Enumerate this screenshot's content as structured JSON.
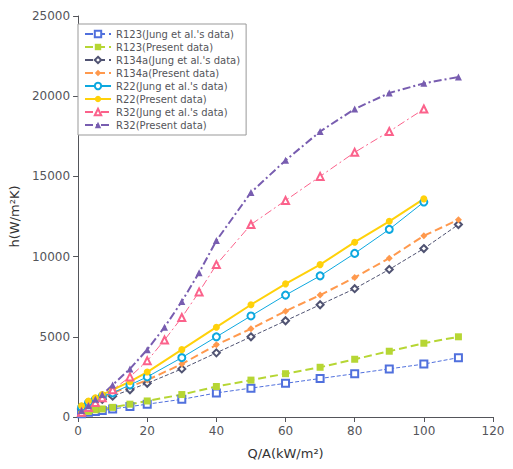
{
  "chart_data": {
    "type": "line",
    "xlabel": "Q/A(kW/m²)",
    "ylabel": "h(W/m²K)",
    "xlim": [
      0,
      120
    ],
    "ylim": [
      0,
      25000
    ],
    "xticks": [
      0,
      20,
      40,
      60,
      80,
      100,
      120
    ],
    "yticks": [
      0,
      5000,
      10000,
      15000,
      20000,
      25000
    ],
    "grid": false,
    "legend": "upper left",
    "series": [
      {
        "name": "R123(Jung et al.'s data)",
        "marker": "square_open",
        "line_style": "dashed",
        "x": [
          1,
          3,
          5,
          7,
          10,
          15,
          20,
          30,
          40,
          50,
          60,
          70,
          80,
          90,
          100,
          110
        ],
        "values": [
          200,
          300,
          350,
          400,
          500,
          650,
          800,
          1100,
          1500,
          1800,
          2100,
          2400,
          2700,
          3000,
          3300,
          3700
        ]
      },
      {
        "name": "R123(Present data)",
        "marker": "square",
        "line_style": "dashed",
        "x": [
          1,
          3,
          5,
          7,
          10,
          15,
          20,
          30,
          40,
          50,
          60,
          70,
          80,
          90,
          100,
          110
        ],
        "values": [
          250,
          350,
          450,
          500,
          600,
          800,
          1000,
          1400,
          1900,
          2300,
          2700,
          3100,
          3600,
          4100,
          4600,
          5000
        ]
      },
      {
        "name": "R134a(Jung et al.'s data)",
        "marker": "diamond_open",
        "line_style": "dashed",
        "x": [
          1,
          3,
          5,
          7,
          10,
          15,
          20,
          30,
          40,
          50,
          60,
          70,
          80,
          90,
          100,
          110
        ],
        "values": [
          500,
          800,
          1000,
          1100,
          1300,
          1700,
          2100,
          3000,
          4000,
          5000,
          6000,
          7000,
          8000,
          9200,
          10500,
          12000
        ]
      },
      {
        "name": "R134a(Present data)",
        "marker": "diamond",
        "line_style": "dashed",
        "x": [
          1,
          3,
          5,
          7,
          10,
          15,
          20,
          30,
          40,
          50,
          60,
          70,
          80,
          90,
          100,
          110
        ],
        "values": [
          600,
          900,
          1100,
          1200,
          1500,
          1900,
          2300,
          3300,
          4500,
          5500,
          6600,
          7600,
          8700,
          9900,
          11300,
          12300
        ]
      },
      {
        "name": "R22(Jung et al.'s data)",
        "marker": "circle_open",
        "line_style": "solid",
        "x": [
          1,
          3,
          5,
          7,
          10,
          15,
          20,
          30,
          40,
          50,
          60,
          70,
          80,
          90,
          100
        ],
        "values": [
          600,
          900,
          1100,
          1300,
          1500,
          2000,
          2500,
          3700,
          5000,
          6300,
          7600,
          8800,
          10200,
          11700,
          13400
        ]
      },
      {
        "name": "R22(Present data)",
        "marker": "circle",
        "line_style": "solid",
        "x": [
          1,
          3,
          5,
          7,
          10,
          15,
          20,
          30,
          40,
          50,
          60,
          70,
          80,
          90,
          100
        ],
        "values": [
          700,
          1000,
          1200,
          1400,
          1700,
          2200,
          2800,
          4200,
          5600,
          7000,
          8300,
          9500,
          10900,
          12200,
          13600
        ]
      },
      {
        "name": "R32(Jung et al.'s data)",
        "marker": "triangle_open",
        "line_style": "dashdot",
        "x": [
          1,
          3,
          5,
          7,
          10,
          15,
          20,
          25,
          30,
          35,
          40,
          50,
          60,
          70,
          80,
          90,
          100
        ],
        "values": [
          300,
          600,
          900,
          1200,
          1700,
          2500,
          3500,
          4800,
          6200,
          7800,
          9500,
          12000,
          13500,
          15000,
          16500,
          17800,
          19200
        ]
      },
      {
        "name": "R32(Present data)",
        "marker": "triangle",
        "line_style": "dashdot",
        "x": [
          1,
          3,
          5,
          7,
          10,
          15,
          20,
          25,
          30,
          35,
          40,
          50,
          60,
          70,
          80,
          90,
          100,
          110
        ],
        "values": [
          400,
          700,
          1100,
          1400,
          2000,
          3000,
          4200,
          5600,
          7200,
          9000,
          11000,
          14000,
          16000,
          17800,
          19200,
          20200,
          20800,
          21200
        ]
      }
    ]
  }
}
